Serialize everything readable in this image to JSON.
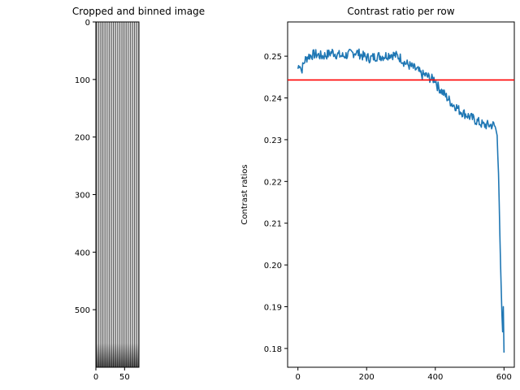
{
  "chart_data": [
    {
      "type": "image",
      "title": "Cropped and binned image",
      "x_ticks": [
        0,
        50
      ],
      "y_ticks": [
        0,
        100,
        200,
        300,
        400,
        500
      ],
      "xlim": [
        0,
        75
      ],
      "ylim": [
        600,
        0
      ],
      "stripe_count": 20
    },
    {
      "type": "line",
      "title": "Contrast ratio per row",
      "xlabel": "",
      "ylabel": "Contrast ratios",
      "xlim": [
        -30,
        630
      ],
      "ylim": [
        0.1755,
        0.2582
      ],
      "x_ticks": [
        0,
        200,
        400,
        600
      ],
      "y_ticks": [
        0.18,
        0.19,
        0.2,
        0.21,
        0.22,
        0.23,
        0.24,
        0.25
      ],
      "y_tick_labels": [
        "0.18",
        "0.19",
        "0.20",
        "0.21",
        "0.22",
        "0.23",
        "0.24",
        "0.25"
      ],
      "threshold": 0.2443,
      "series": [
        {
          "color": "#1f77b4",
          "x": [
            0,
            5,
            10,
            20,
            30,
            50,
            70,
            90,
            100,
            110,
            130,
            150,
            170,
            190,
            210,
            230,
            250,
            270,
            290,
            300,
            310,
            320,
            330,
            340,
            350,
            360,
            370,
            380,
            390,
            400,
            405,
            410,
            420,
            430,
            440,
            450,
            460,
            470,
            480,
            490,
            500,
            510,
            520,
            530,
            540,
            550,
            560,
            570,
            575,
            580,
            582,
            584,
            586,
            588,
            590,
            592,
            594,
            596,
            598,
            600
          ],
          "y": [
            0.247,
            0.2485,
            0.2465,
            0.249,
            0.25,
            0.2505,
            0.25,
            0.2505,
            0.251,
            0.2505,
            0.25,
            0.2505,
            0.251,
            0.25,
            0.2495,
            0.25,
            0.25,
            0.2505,
            0.25,
            0.2495,
            0.2485,
            0.248,
            0.2475,
            0.247,
            0.2465,
            0.2455,
            0.2455,
            0.245,
            0.2445,
            0.2445,
            0.243,
            0.2425,
            0.2415,
            0.2405,
            0.2395,
            0.2385,
            0.238,
            0.237,
            0.2365,
            0.236,
            0.2355,
            0.235,
            0.2345,
            0.234,
            0.2335,
            0.2335,
            0.2335,
            0.2335,
            0.233,
            0.231,
            0.226,
            0.222,
            0.215,
            0.207,
            0.2,
            0.194,
            0.188,
            0.184,
            0.19,
            0.179
          ],
          "noise": 0.0012
        }
      ]
    }
  ]
}
